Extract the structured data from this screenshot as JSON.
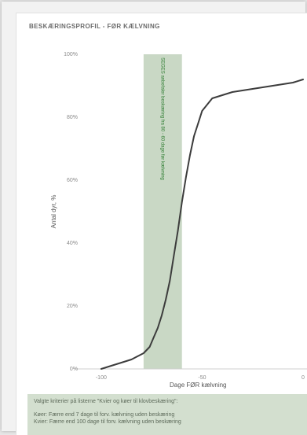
{
  "chart_data": {
    "type": "line",
    "title": "BESKÆRINGSPROFIL - FØR KÆLVNING",
    "xlabel": "Dage FØR kælvning",
    "ylabel": "Antal dyr, %",
    "xlim": [
      -105,
      0
    ],
    "ylim": [
      0,
      100
    ],
    "x_ticks": [
      "-100",
      "-50",
      "0"
    ],
    "x_tick_values": [
      -100,
      -50,
      0
    ],
    "y_ticks": [
      "0%",
      "20%",
      "40%",
      "60%",
      "80%",
      "100%"
    ],
    "y_tick_values": [
      0,
      20,
      40,
      60,
      80,
      100
    ],
    "grid": false,
    "band": {
      "x_start": -79,
      "x_end": -60,
      "label": "SEGES anbefaler beskæring fra 80 - 60 dage før kælvning"
    },
    "series": [
      {
        "x": [
          -100,
          -95,
          -90,
          -85,
          -82,
          -79,
          -76,
          -74,
          -72,
          -70,
          -68,
          -66,
          -64,
          -62,
          -60,
          -58,
          -56,
          -54,
          -52,
          -50,
          -45,
          -40,
          -35,
          -30,
          -25,
          -20,
          -15,
          -10,
          -5,
          0
        ],
        "values": [
          0,
          1,
          2,
          3,
          4,
          5,
          7,
          10,
          13,
          17,
          22,
          28,
          36,
          44,
          53,
          61,
          68,
          74,
          78,
          82,
          86,
          87,
          88,
          88.5,
          89,
          89.5,
          90,
          90.5,
          91,
          92
        ]
      }
    ],
    "colors": {
      "line": "#3c3c3c",
      "band": "#c9d8c5",
      "axis": "#cfcfcf"
    }
  },
  "filter_panel": {
    "line1": "Valgte kriterier på listerne \"Kvier og køer til klovbeskæring\":",
    "line2": "Køer: Færre end  7  dage til forv. kælvning uden beskæring",
    "line3": "Kvier: Færre end 100 dage til forv. kælvning uden beskæring"
  }
}
